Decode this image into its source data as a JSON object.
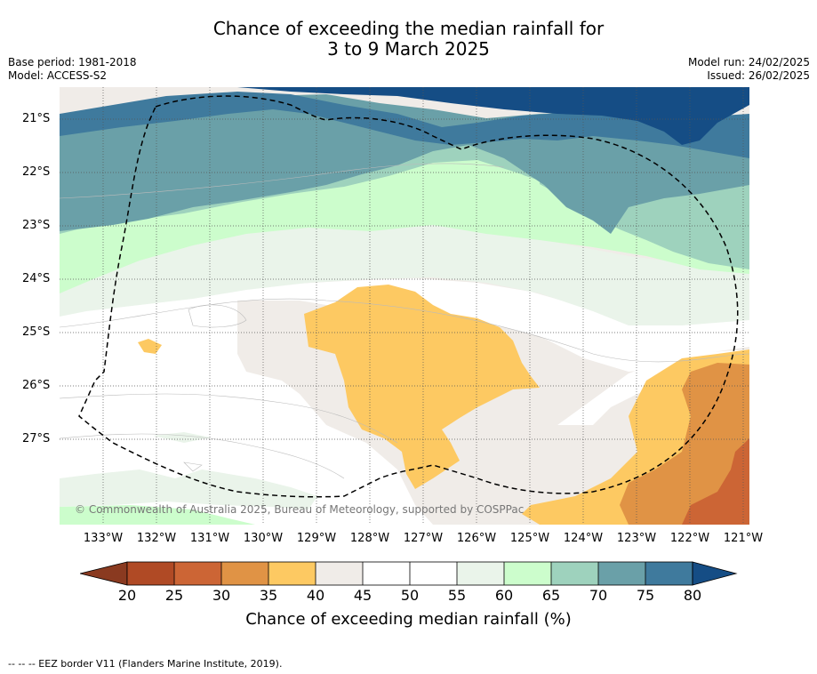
{
  "title": {
    "line1": "Chance of exceeding the median rainfall for",
    "line2": "3 to 9 March 2025"
  },
  "meta_left": {
    "base_period": "Base period: 1981-2018",
    "model": "Model: ACCESS-S2"
  },
  "meta_right": {
    "model_run": "Model run: 24/02/2025",
    "issued": "Issued: 26/02/2025"
  },
  "map": {
    "lat_labels": [
      "21°S",
      "22°S",
      "23°S",
      "24°S",
      "25°S",
      "26°S",
      "27°S"
    ],
    "lon_labels": [
      "133°W",
      "132°W",
      "131°W",
      "130°W",
      "129°W",
      "128°W",
      "127°W",
      "126°W",
      "125°W",
      "124°W",
      "123°W",
      "122°W",
      "121°W"
    ],
    "credit": "© Commonwealth of Australia 2025, Bureau of Meteorology, supported by COSPPac",
    "colors": {
      "below_20": "#8a3a20",
      "20_25": "#b04a25",
      "25_30": "#cc6535",
      "30_35": "#e09345",
      "35_40": "#fdc962",
      "40_45": "#f0ece8",
      "45_50": "#ffffff",
      "50_55": "#ffffff",
      "55_60": "#eaf4ea",
      "60_65": "#ccfdcc",
      "65_70": "#9ed2bd",
      "70_75": "#6aa0a8",
      "75_80": "#3f7a9d",
      "above_80": "#154d85"
    }
  },
  "colorbar": {
    "ticks": [
      "20",
      "25",
      "30",
      "35",
      "40",
      "45",
      "50",
      "55",
      "60",
      "65",
      "70",
      "75",
      "80"
    ],
    "label": "Chance of exceeding median rainfall (%)"
  },
  "footnote": "--  --  -- EEZ border V11 (Flanders Marine Institute, 2019)."
}
